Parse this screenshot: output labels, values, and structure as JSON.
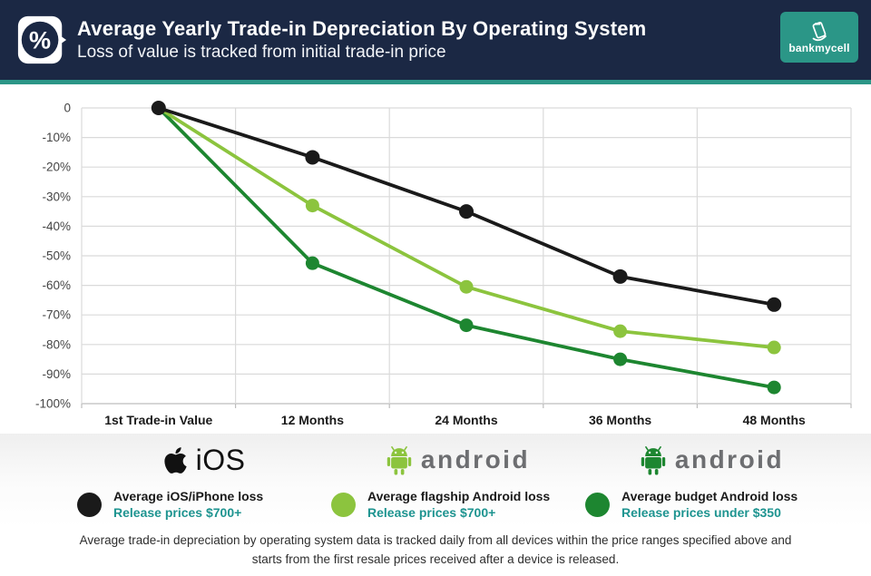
{
  "header": {
    "title": "Average Yearly Trade-in Depreciation By Operating System",
    "subtitle": "Loss of value is tracked from initial trade-in price",
    "brand": "bankmycell"
  },
  "colors": {
    "navy": "#1b2844",
    "teal": "#2b9687",
    "teal_text": "#1e9490",
    "android_gray": "#6d6e71",
    "grid": "#dadada",
    "axis": "#bdbdbd",
    "ios_line": "#1a1a1a",
    "flagship_line": "#8cc43e",
    "budget_line": "#1d8630"
  },
  "chart_data": {
    "type": "line",
    "title": "Average Yearly Trade-in Depreciation By Operating System",
    "categories": [
      "1st Trade-in Value",
      "12 Months",
      "24 Months",
      "36 Months",
      "48 Months"
    ],
    "yticks": [
      "0",
      "-10%",
      "-20%",
      "-30%",
      "-40%",
      "-50%",
      "-60%",
      "-70%",
      "-80%",
      "-90%",
      "-100%"
    ],
    "ylim": [
      0,
      -100
    ],
    "grid": true,
    "legend_position": "bottom",
    "series": [
      {
        "name": "Average iOS/iPhone loss",
        "color": "#1a1a1a",
        "values": [
          0,
          -16.7,
          -35,
          -57,
          -66.5
        ]
      },
      {
        "name": "Average flagship Android loss",
        "color": "#8cc43e",
        "values": [
          0,
          -33,
          -60.5,
          -75.5,
          -81
        ]
      },
      {
        "name": "Average budget Android loss",
        "color": "#1d8630",
        "values": [
          0,
          -52.5,
          -73.5,
          -85,
          -94.5
        ]
      }
    ]
  },
  "platform_logos": [
    {
      "label": "iOS"
    },
    {
      "label": "android"
    },
    {
      "label": "android"
    }
  ],
  "legend": [
    {
      "label": "Average iOS/iPhone loss",
      "sublabel": "Release prices $700+",
      "color": "#1a1a1a"
    },
    {
      "label": "Average flagship Android loss",
      "sublabel": "Release prices $700+",
      "color": "#8cc43e"
    },
    {
      "label": "Average budget Android loss",
      "sublabel": "Release prices under $350",
      "color": "#1d8630"
    }
  ],
  "footer": {
    "line1": "Average trade-in depreciation by operating system data is tracked daily from all devices within the price ranges specified above and",
    "line2": "starts from the first resale prices received after a device is released."
  }
}
